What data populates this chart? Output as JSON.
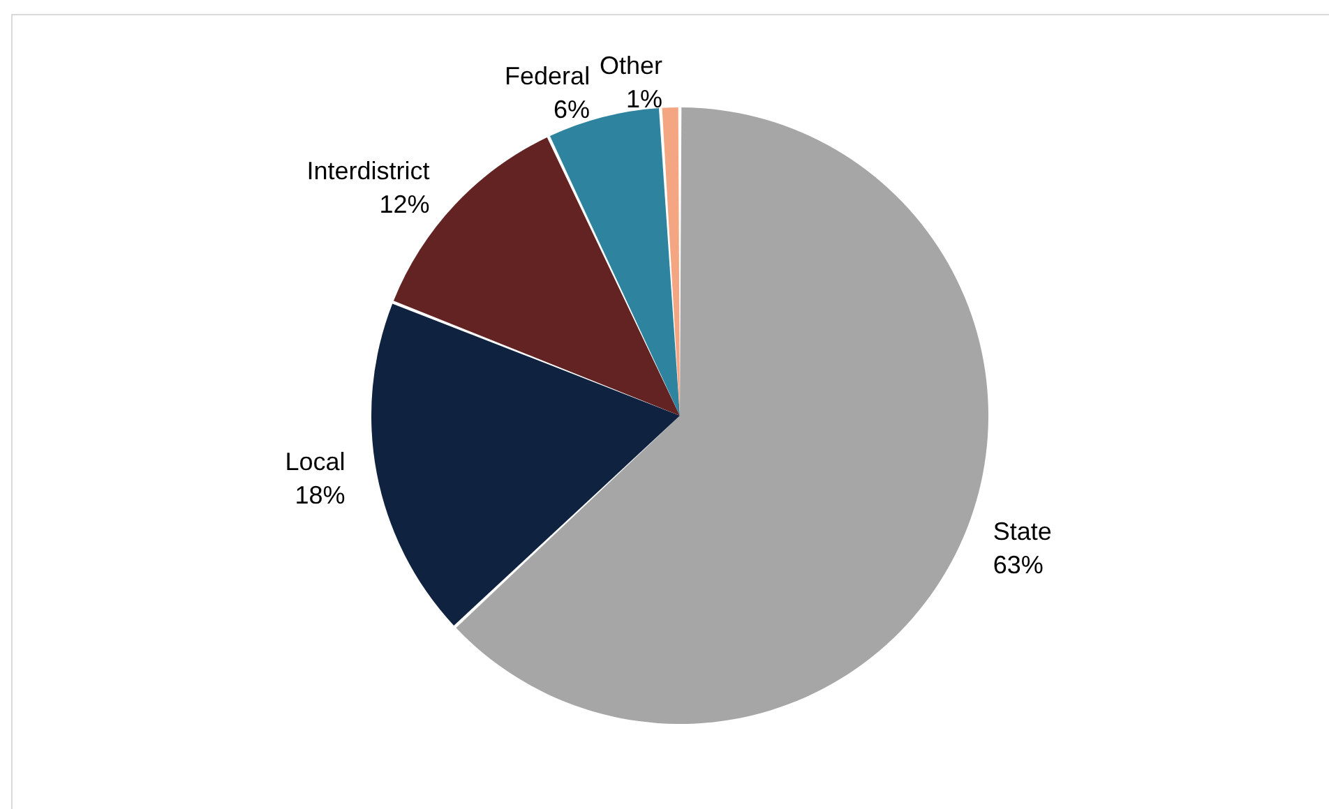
{
  "chart_data": {
    "type": "pie",
    "categories": [
      "State",
      "Local",
      "Interdistrict",
      "Federal",
      "Other"
    ],
    "values": [
      63,
      18,
      12,
      6,
      1
    ],
    "value_labels": [
      "63%",
      "18%",
      "12%",
      "6%",
      "1%"
    ],
    "colors": [
      "#a6a6a6",
      "#0f2340",
      "#632323",
      "#2e839e",
      "#f4a582"
    ],
    "legend": false
  }
}
